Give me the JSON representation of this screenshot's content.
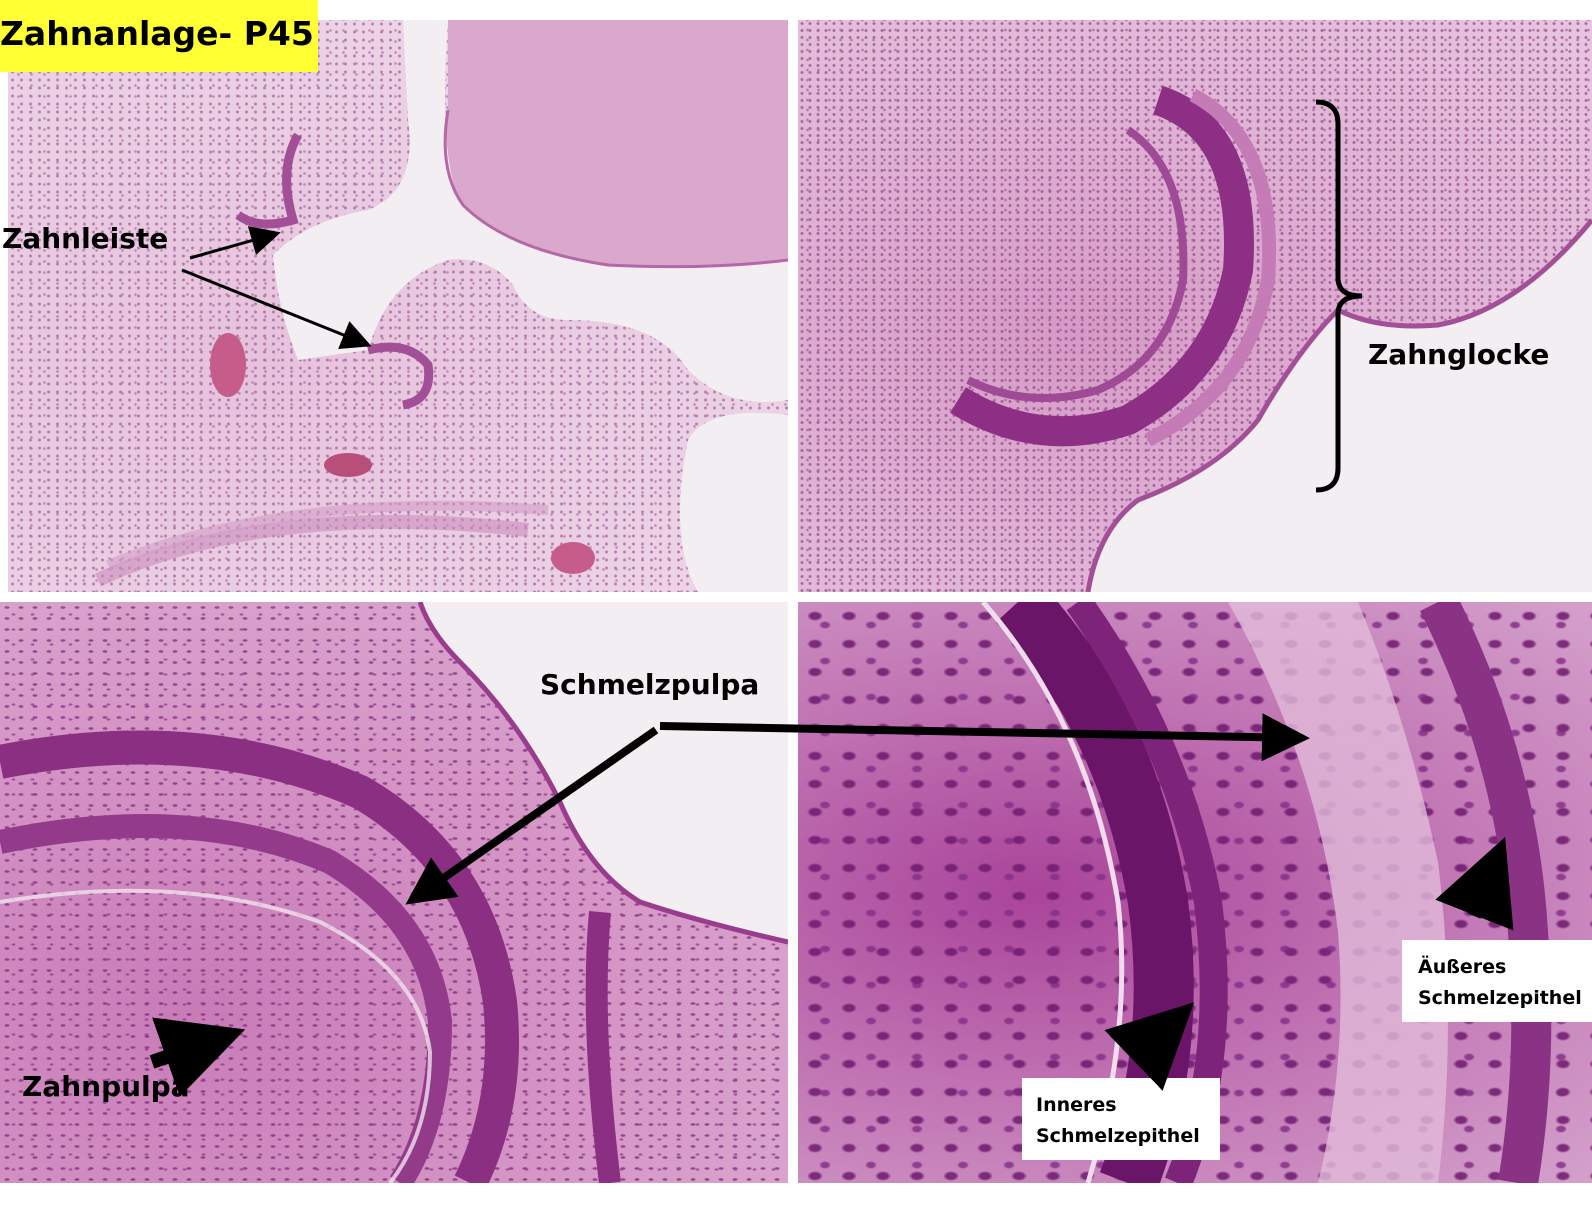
{
  "title": "Zahnanlage- P45",
  "labels": {
    "zahnleiste": "Zahnleiste",
    "zahnglocke": "Zahnglocke",
    "schmelzpulpa": "Schmelzpulpa",
    "zahnpulpa": "Zahnpulpa",
    "inneres_line1": "Inneres",
    "inneres_line2": "Schmelzepithel",
    "aeusseres_line1": "Äußeres",
    "aeusseres_line2": "Schmelzepithel"
  },
  "colors": {
    "title_background": "#ffff33",
    "stain_light": "#e9cde2",
    "stain_dark": "#8e3b86",
    "arrow": "#000000"
  }
}
